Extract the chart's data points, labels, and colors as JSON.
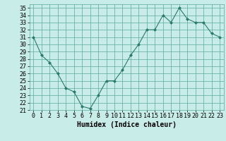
{
  "x": [
    0,
    1,
    2,
    3,
    4,
    5,
    6,
    7,
    8,
    9,
    10,
    11,
    12,
    13,
    14,
    15,
    16,
    17,
    18,
    19,
    20,
    21,
    22,
    23
  ],
  "y": [
    31,
    28.5,
    27.5,
    26,
    24,
    23.5,
    21.5,
    21.2,
    23.0,
    25.0,
    25.0,
    26.5,
    28.5,
    30.0,
    32.0,
    32.0,
    34.0,
    33.0,
    35.0,
    33.5,
    33.0,
    33.0,
    31.5,
    31.0
  ],
  "line_color": "#2a7a6a",
  "marker": "D",
  "marker_size": 2,
  "bg_color": "#c8ece8",
  "grid_color": "#5aaa99",
  "xlabel": "Humidex (Indice chaleur)",
  "ylim": [
    21,
    35.5
  ],
  "xlim": [
    -0.5,
    23.5
  ],
  "yticks": [
    21,
    22,
    23,
    24,
    25,
    26,
    27,
    28,
    29,
    30,
    31,
    32,
    33,
    34,
    35
  ],
  "xticks": [
    0,
    1,
    2,
    3,
    4,
    5,
    6,
    7,
    8,
    9,
    10,
    11,
    12,
    13,
    14,
    15,
    16,
    17,
    18,
    19,
    20,
    21,
    22,
    23
  ],
  "font_size": 6,
  "xlabel_fontsize": 7
}
